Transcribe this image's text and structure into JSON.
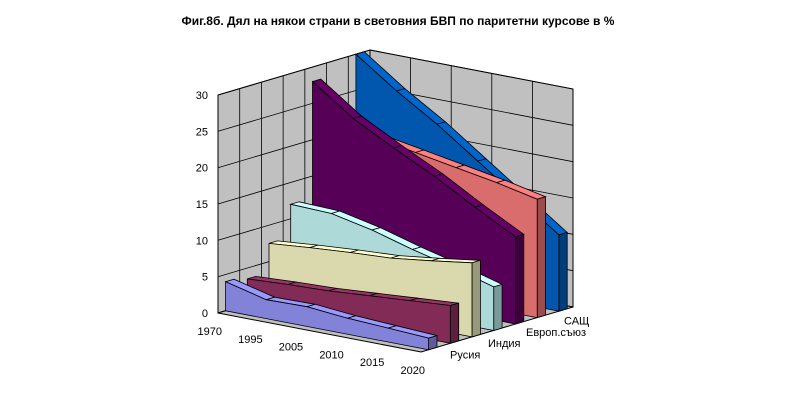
{
  "chart_data": {
    "type": "area",
    "style": "3d-ribbon",
    "title": "Фиг.8б. Дял на някои страни в световния БВП по паритетни курсове в %",
    "xlabel": "",
    "ylabel": "",
    "ylim": [
      0,
      30
    ],
    "yticks": [
      "0",
      "5",
      "10",
      "15",
      "20",
      "25",
      "30"
    ],
    "grid": true,
    "legend": "none",
    "categories": [
      "1970",
      "1995",
      "2005",
      "2010",
      "2015",
      "2020"
    ],
    "series": [
      {
        "name": "Русия",
        "color": "#9999ff",
        "values": [
          4,
          2.6,
          2.7,
          2.2,
          1.9,
          1.6
        ]
      },
      {
        "name": "Индия",
        "color": "#993366",
        "values": [
          3.5,
          3.8,
          4.0,
          4.4,
          4.8,
          5.2
        ]
      },
      {
        "name": "Индия",
        "color": "#ffffcc",
        "values": [
          7.5,
          8.0,
          8.4,
          8.7,
          9.4,
          10.2
        ]
      },
      {
        "name": "Индия",
        "color": "#ccffff",
        "values": [
          12,
          11.8,
          10.6,
          9.0,
          7.6,
          6.0
        ]
      },
      {
        "name": "Европ.съюз",
        "color": "#660066",
        "values": [
          28,
          24,
          21,
          18.2,
          15.0,
          12.0
        ]
      },
      {
        "name": "Европ.съюз",
        "color": "#ff8080",
        "values": [
          22,
          20.5,
          19.5,
          18.5,
          17.5,
          16.3
        ]
      },
      {
        "name": "САЩ",
        "color": "#0066cc",
        "values": [
          30,
          26.0,
          22.5,
          18.5,
          14.5,
          10.5
        ]
      }
    ],
    "depth_labels": [
      "Русия",
      "Индия",
      "Европ.съюз",
      "САЩ"
    ]
  }
}
